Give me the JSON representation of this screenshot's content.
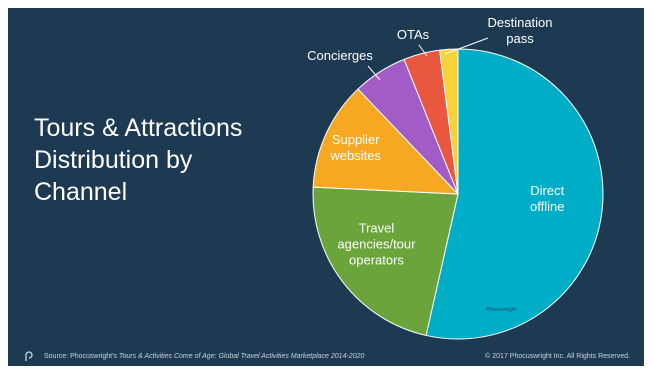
{
  "title_lines": [
    "Tours & Attractions",
    "Distribution by",
    "Channel"
  ],
  "footer": {
    "source_prefix": "Source: Phocuswright's ",
    "source_italic": "Tours & Activities Come of Age: Global Travel Activities Marketplace 2014-2020",
    "copyright": "© 2017 Phocuswright Inc. All Rights Reserved."
  },
  "watermark": "Phocuswright",
  "chart_data": {
    "type": "pie",
    "start_angle_deg": 0,
    "direction": "clockwise",
    "slices": [
      {
        "label_lines": [
          "Direct",
          "offline"
        ],
        "value": 53,
        "color": "#00adc6"
      },
      {
        "label_lines": [
          "Travel",
          "agencies/tour",
          "operators"
        ],
        "value": 22,
        "color": "#6ba43a"
      },
      {
        "label_lines": [
          "Supplier",
          "websites"
        ],
        "value": 12,
        "color": "#f7a823"
      },
      {
        "label_lines": [
          "Concierges"
        ],
        "value": 6,
        "color": "#a35cc6"
      },
      {
        "label_lines": [
          "OTAs"
        ],
        "value": 4,
        "color": "#e9573f"
      },
      {
        "label_lines": [
          "Destination",
          "pass"
        ],
        "value": 2,
        "color": "#f7d23a"
      }
    ]
  }
}
